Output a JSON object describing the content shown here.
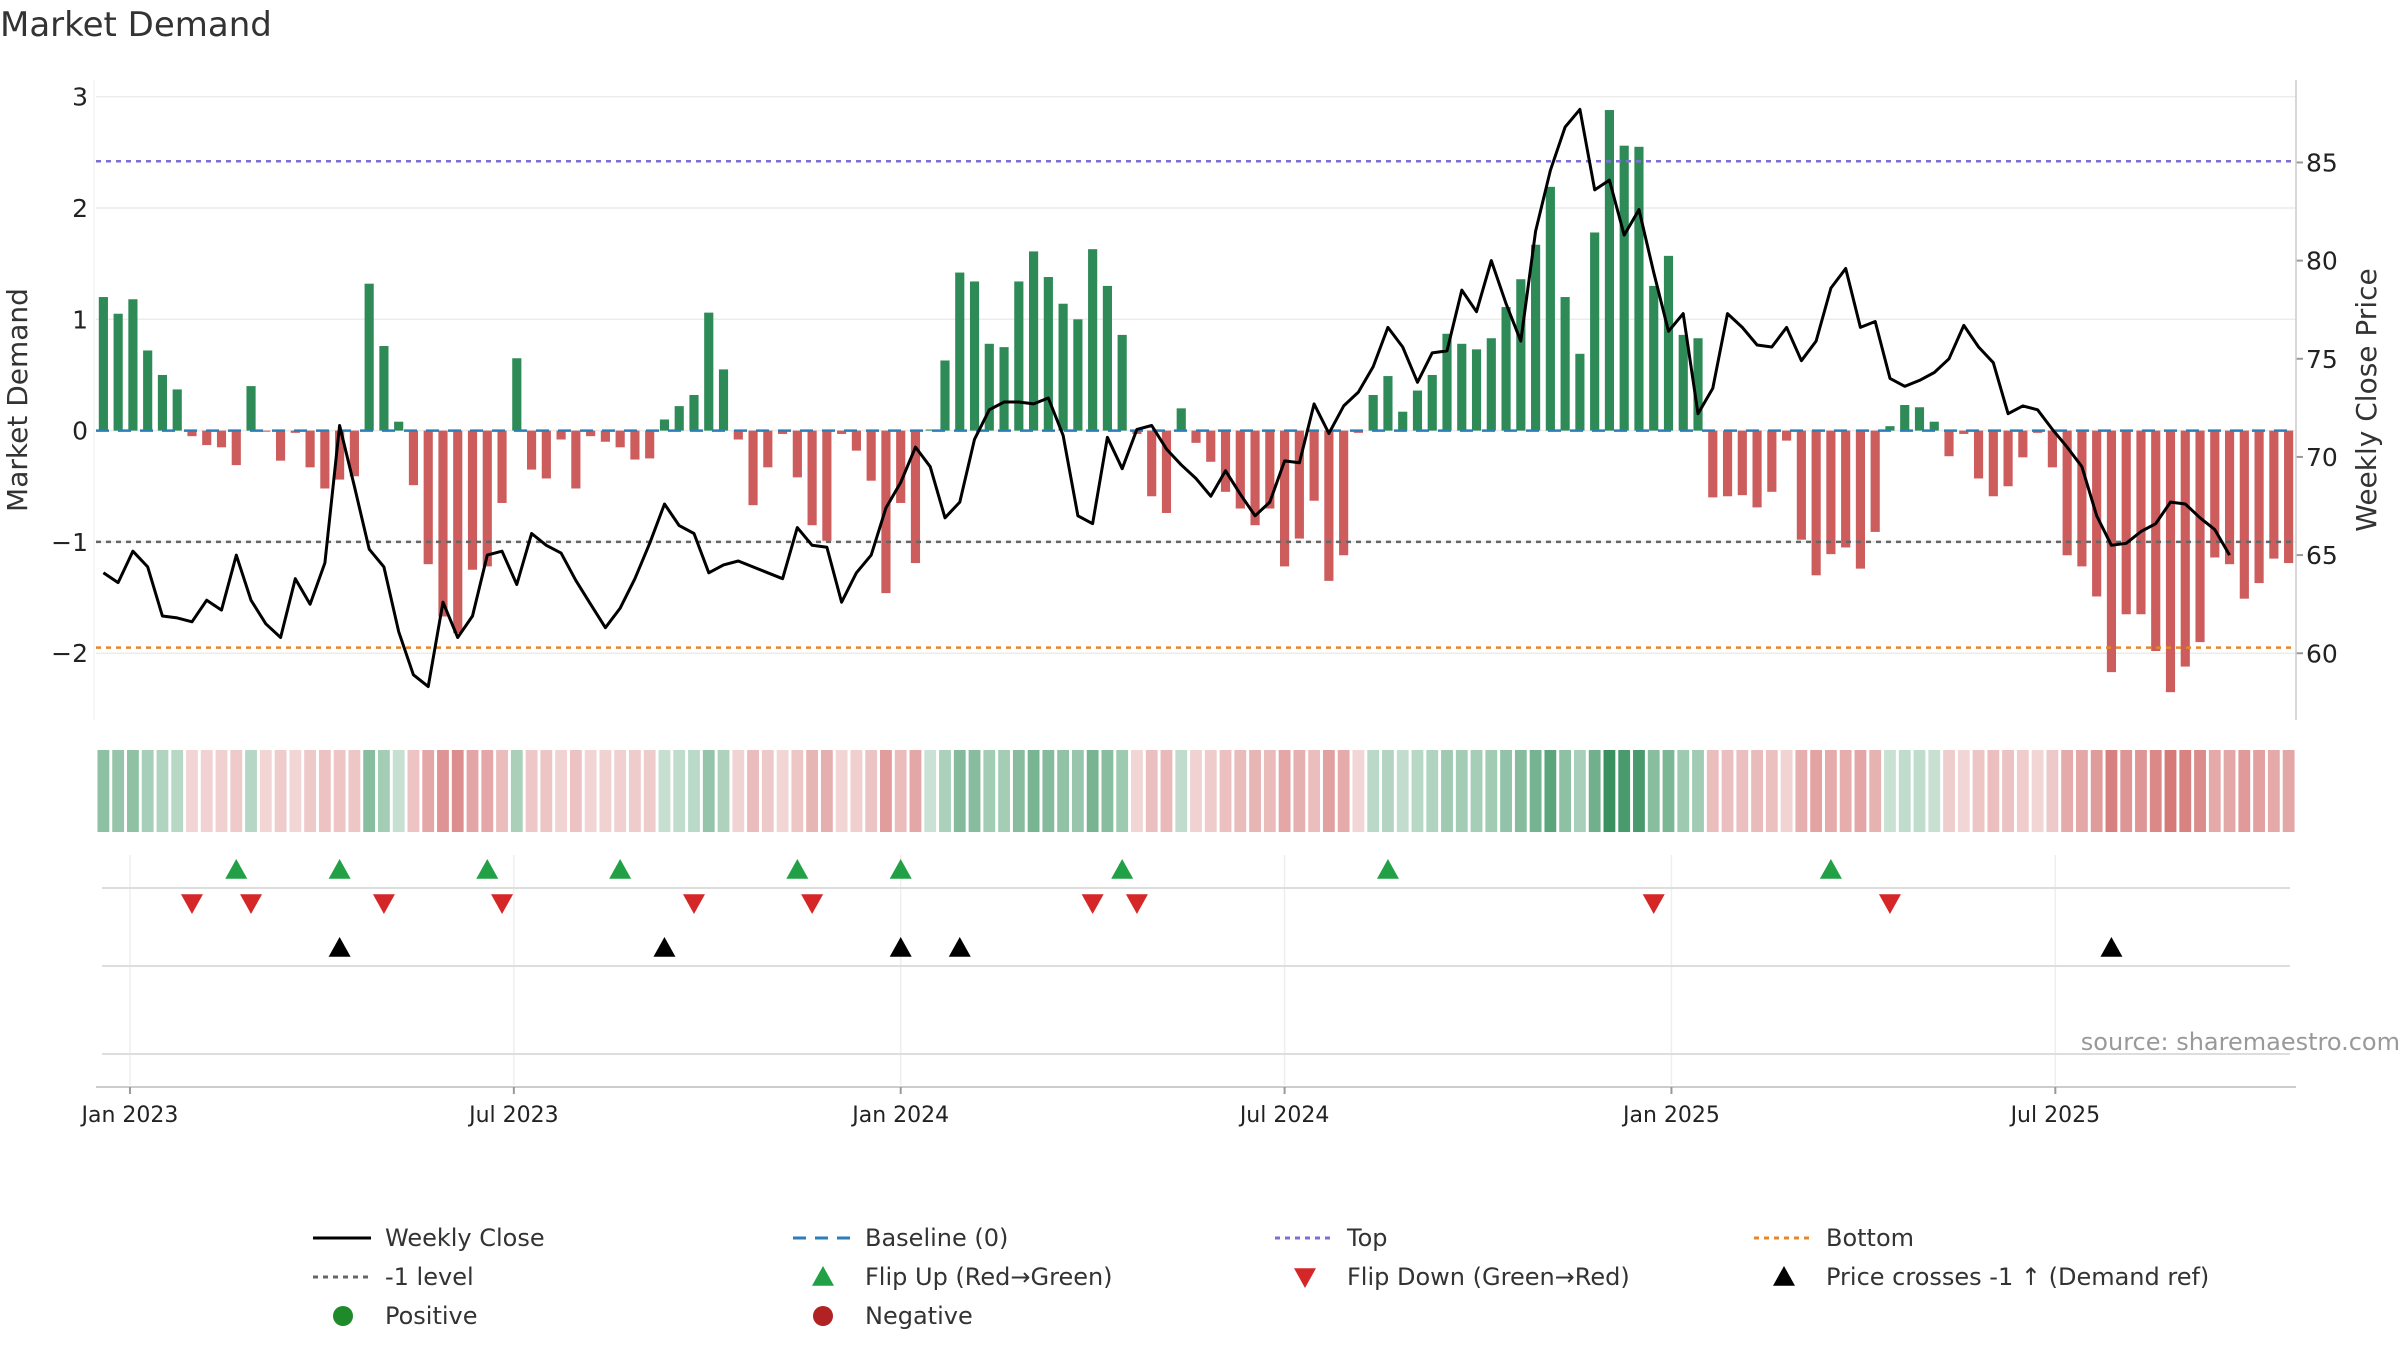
{
  "chart_data": {
    "type": "bar",
    "title": "Market Demand",
    "ylabel_left": "Market Demand",
    "ylabel_right": "Weekly Close Price",
    "source": "source: sharemaestro.com",
    "xticks": [
      {
        "label": "Jan 2023",
        "week": 1.8
      },
      {
        "label": "Jul 2023",
        "week": 27.8
      },
      {
        "label": "Jan 2024",
        "week": 54.0
      },
      {
        "label": "Jul 2024",
        "week": 80.0
      },
      {
        "label": "Jan 2025",
        "week": 106.2
      },
      {
        "label": "Jul 2025",
        "week": 132.2
      }
    ],
    "y_left": {
      "range": [
        -2.6,
        3.15
      ],
      "ticks": [
        3,
        2,
        1,
        0,
        -1,
        -2
      ],
      "tick_labels": [
        "3",
        "2",
        "1",
        "0",
        "−1",
        "−2"
      ]
    },
    "y_right": {
      "range": [
        56.6,
        89.2
      ],
      "ticks": [
        85,
        80,
        75,
        70,
        65,
        60
      ],
      "tick_labels": [
        "85",
        "80",
        "75",
        "70",
        "65",
        "60"
      ]
    },
    "levels": {
      "top": 2.42,
      "bottom": -1.95,
      "minus_one": -1,
      "baseline": 0
    },
    "demand": [
      1.2,
      1.05,
      1.18,
      0.72,
      0.5,
      0.37,
      -0.05,
      -0.13,
      -0.15,
      -0.31,
      0.4,
      -0.01,
      -0.27,
      -0.02,
      -0.33,
      -0.52,
      -0.44,
      -0.41,
      1.32,
      0.76,
      0.08,
      -0.49,
      -1.2,
      -1.67,
      -1.82,
      -1.25,
      -1.22,
      -0.65,
      0.65,
      -0.35,
      -0.43,
      -0.08,
      -0.52,
      -0.05,
      -0.1,
      -0.15,
      -0.26,
      -0.25,
      0.1,
      0.22,
      0.32,
      1.06,
      0.55,
      -0.08,
      -0.67,
      -0.33,
      -0.03,
      -0.42,
      -0.85,
      -0.99,
      -0.03,
      -0.18,
      -0.45,
      -1.46,
      -0.65,
      -1.19,
      0.01,
      0.63,
      1.42,
      1.34,
      0.78,
      0.75,
      1.34,
      1.61,
      1.38,
      1.14,
      1.0,
      1.63,
      1.3,
      0.86,
      -0.03,
      -0.59,
      -0.74,
      0.2,
      -0.11,
      -0.28,
      -0.55,
      -0.7,
      -0.85,
      -0.7,
      -1.22,
      -0.97,
      -0.63,
      -1.35,
      -1.12,
      -0.02,
      0.32,
      0.49,
      0.17,
      0.36,
      0.5,
      0.87,
      0.78,
      0.73,
      0.83,
      1.11,
      1.36,
      1.67,
      2.19,
      1.2,
      0.69,
      1.78,
      2.88,
      2.56,
      2.55,
      1.3,
      1.57,
      0.86,
      0.83,
      -0.6,
      -0.59,
      -0.58,
      -0.69,
      -0.55,
      -0.09,
      -0.98,
      -1.3,
      -1.11,
      -1.05,
      -1.24,
      -0.91,
      0.04,
      0.23,
      0.21,
      0.08,
      -0.23,
      -0.03,
      -0.43,
      -0.59,
      -0.5,
      -0.24,
      -0.02,
      -0.33,
      -1.12,
      -1.22,
      -1.49,
      -2.17,
      -1.65,
      -1.65,
      -1.98,
      -2.35,
      -2.12,
      -1.9,
      -1.14,
      -1.2,
      -1.51,
      -1.37,
      -1.15,
      -1.19
    ],
    "price": [
      64.1,
      63.6,
      65.2,
      64.4,
      61.9,
      61.8,
      61.6,
      62.7,
      62.2,
      65.0,
      62.7,
      61.5,
      60.8,
      63.8,
      62.5,
      64.6,
      71.6,
      68.5,
      65.3,
      64.4,
      61.1,
      58.9,
      58.3,
      62.6,
      60.8,
      61.9,
      65.0,
      65.2,
      63.5,
      66.1,
      65.5,
      65.1,
      63.7,
      62.5,
      61.3,
      62.3,
      63.8,
      65.6,
      67.6,
      66.5,
      66.1,
      64.1,
      64.5,
      64.7,
      64.4,
      64.1,
      63.8,
      66.4,
      65.5,
      65.4,
      62.6,
      64.1,
      65.0,
      67.4,
      68.7,
      70.5,
      69.5,
      66.9,
      67.7,
      70.9,
      72.4,
      72.8,
      72.8,
      72.7,
      73.0,
      71.1,
      67.0,
      66.6,
      71.0,
      69.4,
      71.4,
      71.6,
      70.4,
      69.6,
      68.9,
      68.0,
      69.3,
      68.1,
      67.0,
      67.7,
      69.8,
      69.7,
      72.7,
      71.2,
      72.6,
      73.3,
      74.6,
      76.6,
      75.6,
      73.8,
      75.3,
      75.4,
      78.5,
      77.4,
      80.0,
      77.8,
      75.9,
      81.5,
      84.6,
      86.8,
      87.7,
      83.6,
      84.1,
      81.3,
      82.6,
      79.4,
      76.4,
      77.3,
      72.2,
      73.5,
      77.3,
      76.6,
      75.7,
      75.6,
      76.6,
      74.9,
      75.9,
      78.6,
      79.6,
      76.6,
      76.9,
      74.0,
      73.6,
      73.9,
      74.3,
      75.0,
      76.7,
      75.6,
      74.8,
      72.2,
      72.6,
      72.4,
      71.4,
      70.5,
      69.5,
      67.0,
      65.5,
      65.6,
      66.2,
      66.6,
      67.7,
      67.6,
      66.9,
      66.3,
      65.0
    ],
    "flip_up_weeks": [
      9,
      16,
      26,
      35,
      47,
      54,
      69,
      87,
      117
    ],
    "flip_down_weeks": [
      6,
      10,
      19,
      27,
      40,
      48,
      67,
      70,
      105,
      121
    ],
    "price_cross_weeks": [
      16,
      38,
      54,
      58,
      136
    ],
    "legend": {
      "weekly_close": "Weekly Close",
      "baseline": "Baseline (0)",
      "top": "Top",
      "bottom": "Bottom",
      "minus_one": "-1 level",
      "flip_up": "Flip Up (Red→Green)",
      "flip_down": "Flip Down (Green→Red)",
      "price_cross": "Price crosses -1 ↑ (Demand ref)",
      "positive": "Positive",
      "negative": "Negative"
    },
    "colors": {
      "positive": "#2e8b57",
      "negative": "#cd5c5c",
      "price": "#000000",
      "top": "#7b6fd6",
      "bottom": "#e3872d",
      "minus_one": "#666666",
      "baseline": "#2a7fb8",
      "flip_up": "#22a046",
      "flip_down": "#d62728",
      "positive_marker": "#1f8a2a",
      "negative_marker": "#b22222"
    }
  }
}
